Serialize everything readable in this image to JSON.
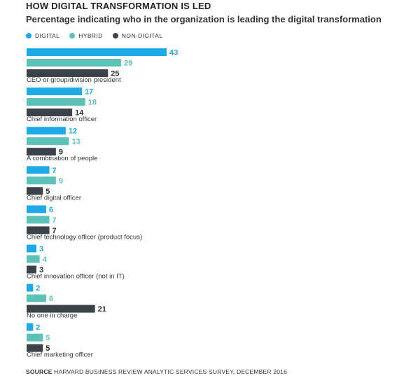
{
  "header": {
    "title": "HOW DIGITAL TRANSFORMATION IS LED",
    "subtitle": "Percentage indicating who in the organization is leading the digital transformation"
  },
  "legend": [
    {
      "label": "DIGITAL",
      "color": "#1eaae7"
    },
    {
      "label": "HYBRID",
      "color": "#5cc2b8"
    },
    {
      "label": "NON-DIGITAL",
      "color": "#3b4249"
    }
  ],
  "source": {
    "label": "SOURCE",
    "text": "HARVARD BUSINESS REVIEW ANALYTIC SERVICES SURVEY, DECEMBER 2016"
  },
  "chart_data": {
    "type": "bar",
    "orientation": "horizontal",
    "title": "HOW DIGITAL TRANSFORMATION IS LED",
    "subtitle": "Percentage indicating who in the organization is leading the digital transformation",
    "xlabel": "",
    "ylabel": "",
    "xlim": [
      0,
      43
    ],
    "grid": false,
    "legend_position": "top-left",
    "categories": [
      "CEO or group/division president",
      "Chief information officer",
      "A combination of people",
      "Chief digital officer",
      "Chief technology officer (product focus)",
      "Chief innovation officer (not in IT)",
      "No one in charge",
      "Chief marketing officer"
    ],
    "series": [
      {
        "name": "DIGITAL",
        "color": "#1eaae7",
        "values": [
          43,
          17,
          12,
          7,
          6,
          3,
          2,
          2
        ]
      },
      {
        "name": "HYBRID",
        "color": "#5cc2b8",
        "values": [
          29,
          18,
          13,
          9,
          7,
          4,
          6,
          5
        ]
      },
      {
        "name": "NON-DIGITAL",
        "color": "#3b4249",
        "values": [
          25,
          14,
          9,
          5,
          7,
          3,
          21,
          5
        ]
      }
    ]
  }
}
